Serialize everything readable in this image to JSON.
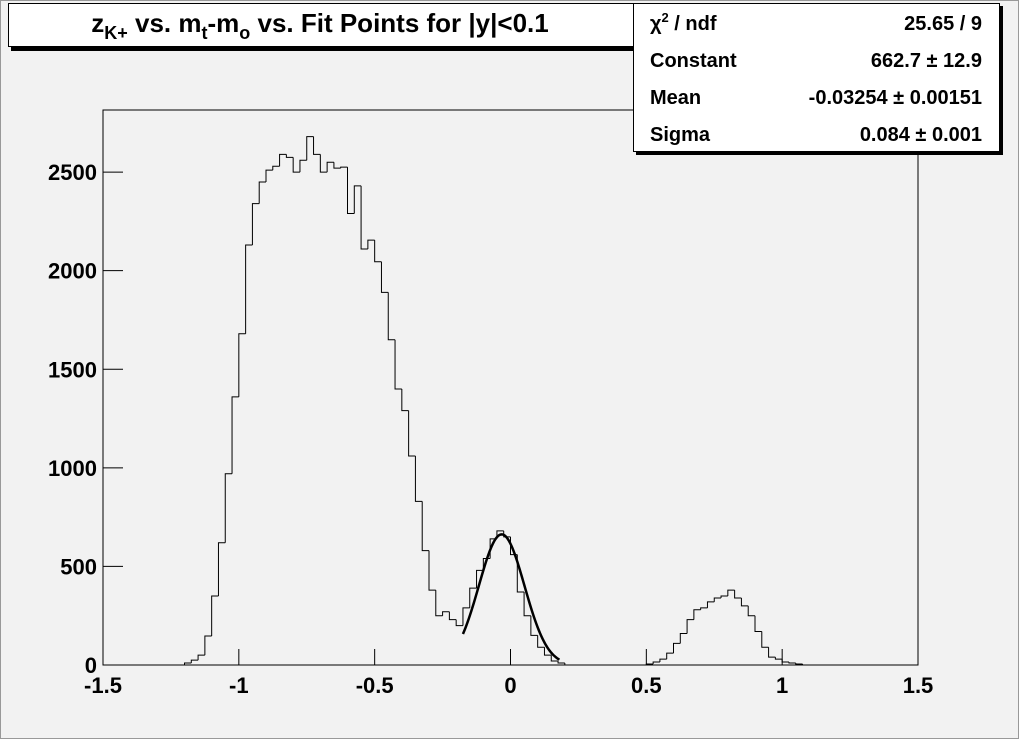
{
  "chart_data": {
    "type": "histogram",
    "title": [
      "z",
      "K+",
      " vs. m",
      "t",
      "-m",
      "o",
      " vs. Fit Points for |y|<0.1"
    ],
    "stats": [
      {
        "label": [
          "χ",
          "2",
          " / ndf"
        ],
        "value": "25.65 / 9"
      },
      {
        "label": [
          "Constant"
        ],
        "value": "662.7 ± 12.9"
      },
      {
        "label": [
          "Mean"
        ],
        "value": "-0.03254 ± 0.00151"
      },
      {
        "label": [
          "Sigma"
        ],
        "value": "0.084 ± 0.001"
      }
    ],
    "fit": {
      "constant": 662.7,
      "mean": -0.03254,
      "sigma": 0.084,
      "range": [
        -0.175,
        0.18
      ],
      "color": "#000000"
    },
    "color": "#000000",
    "bins": [
      -1.5,
      -1.475,
      -1.45,
      -1.425,
      -1.4,
      -1.375,
      -1.35,
      -1.325,
      -1.3,
      -1.275,
      -1.25,
      -1.225,
      -1.2,
      -1.175,
      -1.15,
      -1.125,
      -1.1,
      -1.075,
      -1.05,
      -1.025,
      -1,
      -0.975,
      -0.95,
      -0.925,
      -0.9,
      -0.875,
      -0.85,
      -0.825,
      -0.8,
      -0.775,
      -0.75,
      -0.725,
      -0.7,
      -0.675,
      -0.65,
      -0.625,
      -0.6,
      -0.575,
      -0.55,
      -0.525,
      -0.5,
      -0.475,
      -0.45,
      -0.425,
      -0.4,
      -0.375,
      -0.35,
      -0.325,
      -0.3,
      -0.275,
      -0.25,
      -0.225,
      -0.2,
      -0.175,
      -0.15,
      -0.125,
      -0.1,
      -0.075,
      -0.05,
      -0.025,
      0,
      0.025,
      0.05,
      0.075,
      0.1,
      0.125,
      0.15,
      0.175,
      0.2,
      0.225,
      0.25,
      0.275,
      0.3,
      0.325,
      0.35,
      0.375,
      0.4,
      0.425,
      0.45,
      0.475,
      0.5,
      0.525,
      0.55,
      0.575,
      0.6,
      0.625,
      0.65,
      0.675,
      0.7,
      0.725,
      0.75,
      0.775,
      0.8,
      0.825,
      0.85,
      0.875,
      0.9,
      0.925,
      0.95,
      0.975,
      1,
      1.025,
      1.05,
      1.075,
      1.1,
      1.125,
      1.15,
      1.175,
      1.2,
      1.225,
      1.25,
      1.275,
      1.3,
      1.325,
      1.35,
      1.375,
      1.4,
      1.425,
      1.45,
      1.475,
      1.5
    ],
    "values": [
      0,
      0,
      0,
      0,
      0,
      0,
      0,
      0,
      0,
      0,
      0,
      0,
      10,
      25,
      50,
      147,
      350,
      620,
      970,
      1360,
      1680,
      2130,
      2340,
      2450,
      2510,
      2530,
      2590,
      2575,
      2500,
      2560,
      2680,
      2590,
      2500,
      2550,
      2520,
      2525,
      2290,
      2430,
      2110,
      2155,
      2045,
      1890,
      1650,
      1400,
      1290,
      1060,
      830,
      580,
      380,
      250,
      270,
      230,
      200,
      290,
      390,
      480,
      540,
      640,
      680,
      650,
      560,
      370,
      250,
      150,
      90,
      50,
      20,
      10,
      0,
      0,
      0,
      0,
      0,
      0,
      0,
      0,
      0,
      0,
      0,
      0,
      5,
      15,
      30,
      60,
      110,
      160,
      230,
      280,
      290,
      320,
      340,
      350,
      380,
      340,
      300,
      250,
      170,
      90,
      40,
      30,
      15,
      10,
      5,
      0,
      0,
      0,
      0,
      0,
      0,
      0,
      0,
      0,
      0,
      0,
      0,
      0,
      0,
      0,
      0,
      0,
      0
    ],
    "xlim": [
      -1.5,
      1.5
    ],
    "xticks": [
      -1.5,
      -1,
      -0.5,
      0,
      0.5,
      1,
      1.5
    ],
    "ylim": [
      0,
      2815
    ],
    "yticks": [
      0,
      500,
      1000,
      1500,
      2000,
      2500
    ]
  }
}
